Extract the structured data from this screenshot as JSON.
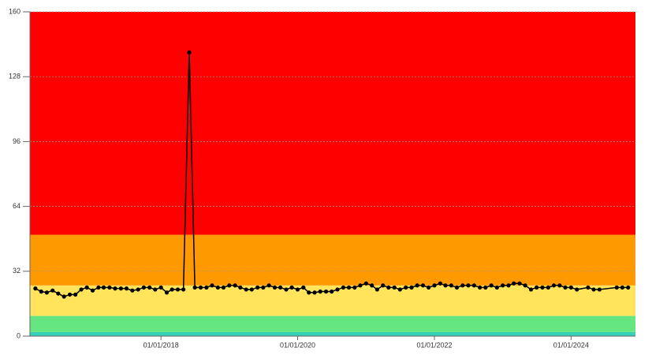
{
  "chart_data": {
    "type": "line",
    "x": [
      "2016-03-01",
      "2016-04-01",
      "2016-05-01",
      "2016-06-01",
      "2016-07-01",
      "2016-08-01",
      "2016-09-01",
      "2016-10-01",
      "2016-11-01",
      "2016-12-01",
      "2017-01-01",
      "2017-02-01",
      "2017-03-01",
      "2017-04-01",
      "2017-05-01",
      "2017-06-01",
      "2017-07-01",
      "2017-08-01",
      "2017-09-01",
      "2017-10-01",
      "2017-11-01",
      "2017-12-01",
      "2018-01-01",
      "2018-02-01",
      "2018-03-01",
      "2018-04-01",
      "2018-05-01",
      "2018-06-01",
      "2018-07-01",
      "2018-08-01",
      "2018-09-01",
      "2018-10-01",
      "2018-11-01",
      "2018-12-01",
      "2019-01-01",
      "2019-02-01",
      "2019-03-01",
      "2019-04-01",
      "2019-05-01",
      "2019-06-01",
      "2019-07-01",
      "2019-08-01",
      "2019-09-01",
      "2019-10-01",
      "2019-11-01",
      "2019-12-01",
      "2020-01-01",
      "2020-02-01",
      "2020-03-01",
      "2020-04-01",
      "2020-05-01",
      "2020-06-01",
      "2020-07-01",
      "2020-08-01",
      "2020-09-01",
      "2020-10-01",
      "2020-11-01",
      "2020-12-01",
      "2021-01-01",
      "2021-02-01",
      "2021-03-01",
      "2021-04-01",
      "2021-05-01",
      "2021-06-01",
      "2021-07-01",
      "2021-08-01",
      "2021-09-01",
      "2021-10-01",
      "2021-11-01",
      "2021-12-01",
      "2022-01-01",
      "2022-02-01",
      "2022-03-01",
      "2022-04-01",
      "2022-05-01",
      "2022-06-01",
      "2022-07-01",
      "2022-08-01",
      "2022-09-01",
      "2022-10-01",
      "2022-11-01",
      "2022-12-01",
      "2023-01-01",
      "2023-02-01",
      "2023-03-01",
      "2023-04-01",
      "2023-05-01",
      "2023-06-01",
      "2023-07-01",
      "2023-08-01",
      "2023-09-01",
      "2023-10-01",
      "2023-11-01",
      "2023-12-01",
      "2024-01-01",
      "2024-02-01",
      "2024-04-01",
      "2024-05-01",
      "2024-06-01",
      "2024-09-01",
      "2024-10-01",
      "2024-11-01"
    ],
    "series": [
      {
        "color": "#000000",
        "values": [
          23.5,
          22,
          21.5,
          22.5,
          21,
          19.5,
          20.5,
          20.5,
          23,
          24,
          22.5,
          24,
          24,
          24,
          23.5,
          23.5,
          23.5,
          22.5,
          23,
          24,
          24,
          23,
          24,
          21.5,
          23,
          23,
          23,
          140,
          24,
          24,
          24,
          25,
          24,
          24,
          25,
          25,
          24,
          23,
          23,
          24,
          24,
          25,
          24,
          24,
          23,
          24,
          23,
          24,
          21.5,
          21.5,
          22,
          22,
          22,
          23,
          24,
          24,
          24,
          25,
          26,
          25,
          23,
          25,
          24,
          24,
          23,
          24,
          24,
          25,
          25,
          24,
          25,
          26,
          25,
          25,
          24,
          25,
          25,
          25,
          24,
          24,
          25,
          24,
          25,
          25,
          26,
          26,
          25,
          23,
          24,
          24,
          24,
          25,
          25,
          24,
          24,
          23,
          24,
          23,
          23,
          24,
          24,
          24
        ]
      }
    ],
    "bands": [
      {
        "from": 0,
        "to": 2,
        "color": "#33d1b5"
      },
      {
        "from": 2,
        "to": 10,
        "color": "#66e680"
      },
      {
        "from": 10,
        "to": 25,
        "color": "#ffe45c"
      },
      {
        "from": 25,
        "to": 50,
        "color": "#ff9900"
      },
      {
        "from": 50,
        "to": 160,
        "color": "#ff0000"
      }
    ],
    "xlim": [
      "2016-02-01",
      "2024-12-10"
    ],
    "xticks": [
      {
        "value": "2018-01-01",
        "label": "01/01/2018"
      },
      {
        "value": "2020-01-01",
        "label": "01/01/2020"
      },
      {
        "value": "2022-01-01",
        "label": "01/01/2022"
      },
      {
        "value": "2024-01-01",
        "label": "01/01/2024"
      }
    ],
    "ylim": [
      0,
      160
    ],
    "yticks": [
      0,
      32,
      64,
      96,
      128,
      160
    ],
    "grid": true
  }
}
